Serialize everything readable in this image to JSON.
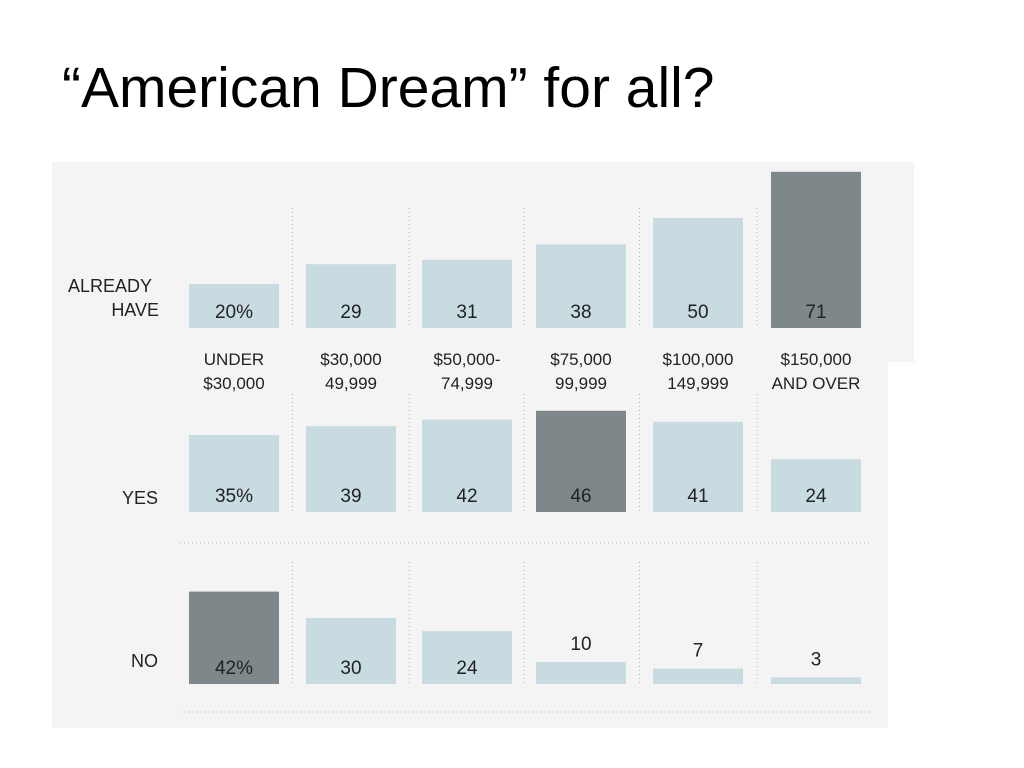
{
  "title": "“American Dream” for all?",
  "colors": {
    "panel": "#f4f4f4",
    "bar": "#c8dbe1",
    "bar_highlight": "#7e888b",
    "text": "#222222",
    "divider": "#b8b8b8"
  },
  "chart_data": {
    "type": "bar",
    "categories": [
      [
        "UNDER",
        "$30,000"
      ],
      [
        "$30,000",
        "49,999"
      ],
      [
        "$50,000-",
        "74,999"
      ],
      [
        "$75,000",
        "99,999"
      ],
      [
        "$100,000",
        "149,999"
      ],
      [
        "$150,000",
        "AND OVER"
      ]
    ],
    "grid": false,
    "series": [
      {
        "name": "ALREADY HAVE",
        "values": [
          20,
          29,
          31,
          38,
          50,
          71
        ],
        "labels": [
          "20%",
          "29",
          "31",
          "38",
          "50",
          "71"
        ],
        "highlight": [
          5
        ]
      },
      {
        "name": "YES",
        "values": [
          35,
          39,
          42,
          46,
          41,
          24
        ],
        "labels": [
          "35%",
          "39",
          "42",
          "46",
          "41",
          "24"
        ],
        "highlight": [
          3
        ]
      },
      {
        "name": "NO",
        "values": [
          42,
          30,
          24,
          10,
          7,
          3
        ],
        "labels": [
          "42%",
          "30",
          "24",
          "10",
          "7",
          "3"
        ],
        "highlight": [
          0
        ]
      }
    ]
  }
}
